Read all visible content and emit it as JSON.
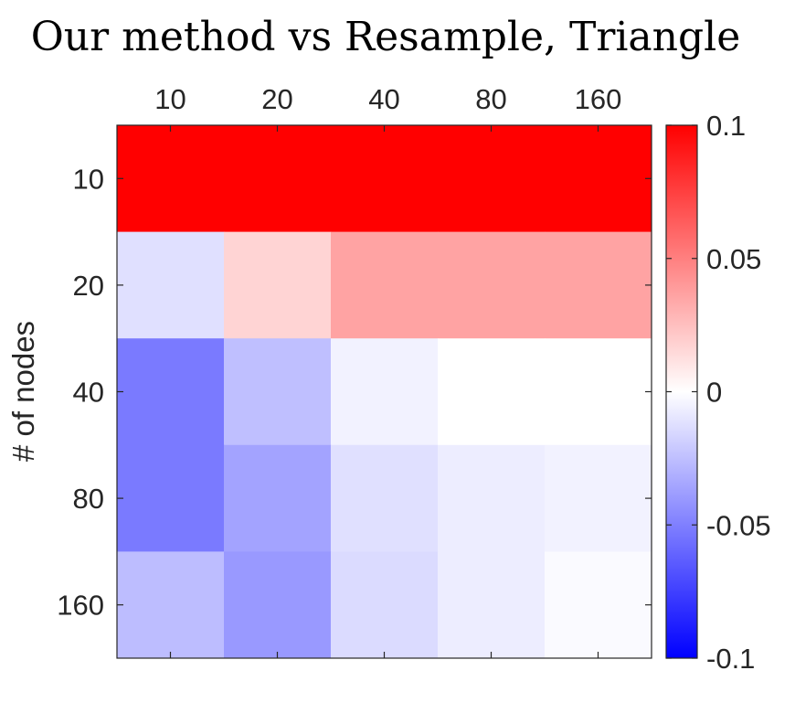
{
  "chart_data": {
    "type": "heatmap",
    "title": "Our method vs Resample, Triangle",
    "xlabel": "",
    "ylabel": "# of nodes",
    "x_categories": [
      "10",
      "20",
      "40",
      "80",
      "160"
    ],
    "y_categories": [
      "10",
      "20",
      "40",
      "80",
      "160"
    ],
    "values": [
      [
        0.1,
        0.1,
        0.1,
        0.1,
        0.1
      ],
      [
        -0.012,
        0.017,
        0.036,
        0.036,
        0.036
      ],
      [
        -0.052,
        -0.025,
        -0.005,
        0.0,
        0.0
      ],
      [
        -0.052,
        -0.036,
        -0.012,
        -0.007,
        -0.005
      ],
      [
        -0.026,
        -0.04,
        -0.014,
        -0.007,
        -0.002
      ]
    ],
    "colorbar": {
      "range": [
        -0.1,
        0.1
      ],
      "ticks": [
        0.1,
        0.05,
        0,
        -0.05,
        -0.1
      ],
      "tick_labels": [
        "0.1",
        "0.05",
        "0",
        "-0.05",
        "-0.1"
      ],
      "colormap": "blue-white-red",
      "low_color": "#0000ff",
      "mid_color": "#ffffff",
      "high_color": "#ff0000"
    },
    "x_axis_position": "top",
    "grid": false
  }
}
